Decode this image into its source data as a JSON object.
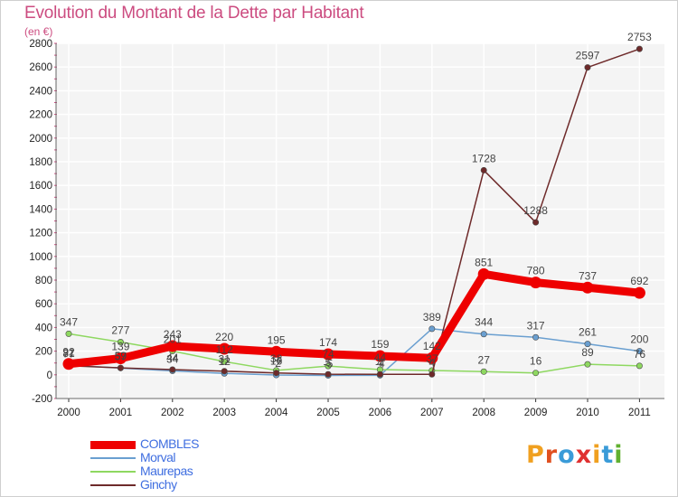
{
  "header": {
    "title": "Evolution du Montant de la Dette par Habitant",
    "subtitle": "(en €)"
  },
  "logo": {
    "text": "Proxiti",
    "colors": [
      "#f0a020",
      "#e05020",
      "#3a9bd8",
      "#e03030",
      "#f0a020",
      "#3a9bd8",
      "#60b030"
    ]
  },
  "chart_data": {
    "type": "line",
    "title": "Evolution du Montant de la Dette par Habitant",
    "subtitle": "(en €)",
    "xlabel": "",
    "ylabel": "",
    "x": [
      "2000",
      "2001",
      "2002",
      "2003",
      "2004",
      "2005",
      "2006",
      "2007",
      "2008",
      "2009",
      "2010",
      "2011"
    ],
    "ylim": [
      -200,
      2800
    ],
    "yticks": [
      -200,
      0,
      200,
      400,
      600,
      800,
      1000,
      1200,
      1400,
      1600,
      1800,
      2000,
      2200,
      2400,
      2600,
      2800
    ],
    "grid": true,
    "legend_position": "bottom-left",
    "series": [
      {
        "name": "COMBLES",
        "color": "#ee0000",
        "values": [
          92,
          139,
          243,
          220,
          195,
          174,
          159,
          142,
          851,
          780,
          737,
          692
        ],
        "labels": [
          "92",
          "139",
          "243",
          "220",
          "195",
          "174",
          "159",
          "142",
          "851",
          "780",
          "737",
          "692"
        ]
      },
      {
        "name": "Morval",
        "color": "#6a9fd0",
        "values": [
          81,
          57,
          34,
          12,
          -2,
          -5,
          -4,
          389,
          344,
          317,
          261,
          200
        ],
        "labels": [
          "81",
          "57",
          "34",
          "12",
          "-2",
          "-5",
          "-4",
          "389",
          "344",
          "317",
          "261",
          "200"
        ]
      },
      {
        "name": "Maurepas",
        "color": "#8ed860",
        "values": [
          347,
          277,
          201,
          112,
          38,
          74,
          44,
          37,
          27,
          16,
          89,
          76
        ],
        "labels": [
          "347",
          "277",
          "201",
          "112",
          "38",
          "74",
          "44",
          "37",
          "27",
          "16",
          "89",
          "76"
        ]
      },
      {
        "name": "Ginchy",
        "color": "#6e2a2a",
        "values": [
          77,
          59,
          44,
          31,
          16,
          5,
          4,
          4,
          1728,
          1288,
          2597,
          2753
        ],
        "labels": [
          "77",
          "59",
          "44",
          "31",
          "16",
          "5",
          "4",
          "4",
          "1728",
          "1288",
          "2597",
          "2753"
        ]
      }
    ]
  }
}
